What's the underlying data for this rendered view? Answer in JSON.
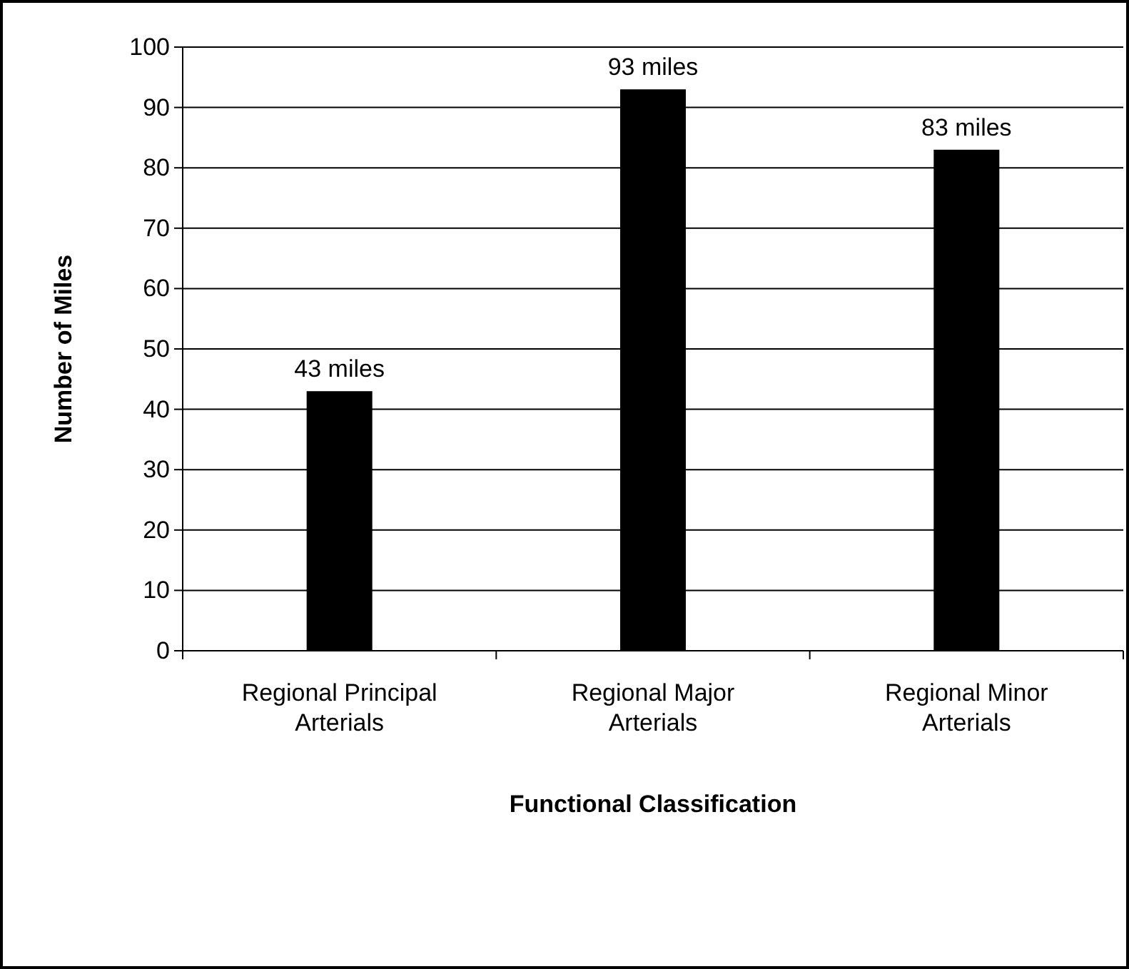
{
  "chart_data": {
    "type": "bar",
    "xlabel": "Functional Classification",
    "ylabel": "Number of Miles",
    "categories": [
      "Regional Principal Arterials",
      "Regional Major Arterials",
      "Regional Minor Arterials"
    ],
    "values": [
      43,
      93,
      83
    ],
    "color": "#000000",
    "value_labels": [
      "43 miles",
      "93 miles",
      "83 miles"
    ],
    "ylim": [
      0,
      100
    ],
    "yticks": [
      0,
      10,
      20,
      30,
      40,
      50,
      60,
      70,
      80,
      90,
      100
    ],
    "grid": "y"
  }
}
